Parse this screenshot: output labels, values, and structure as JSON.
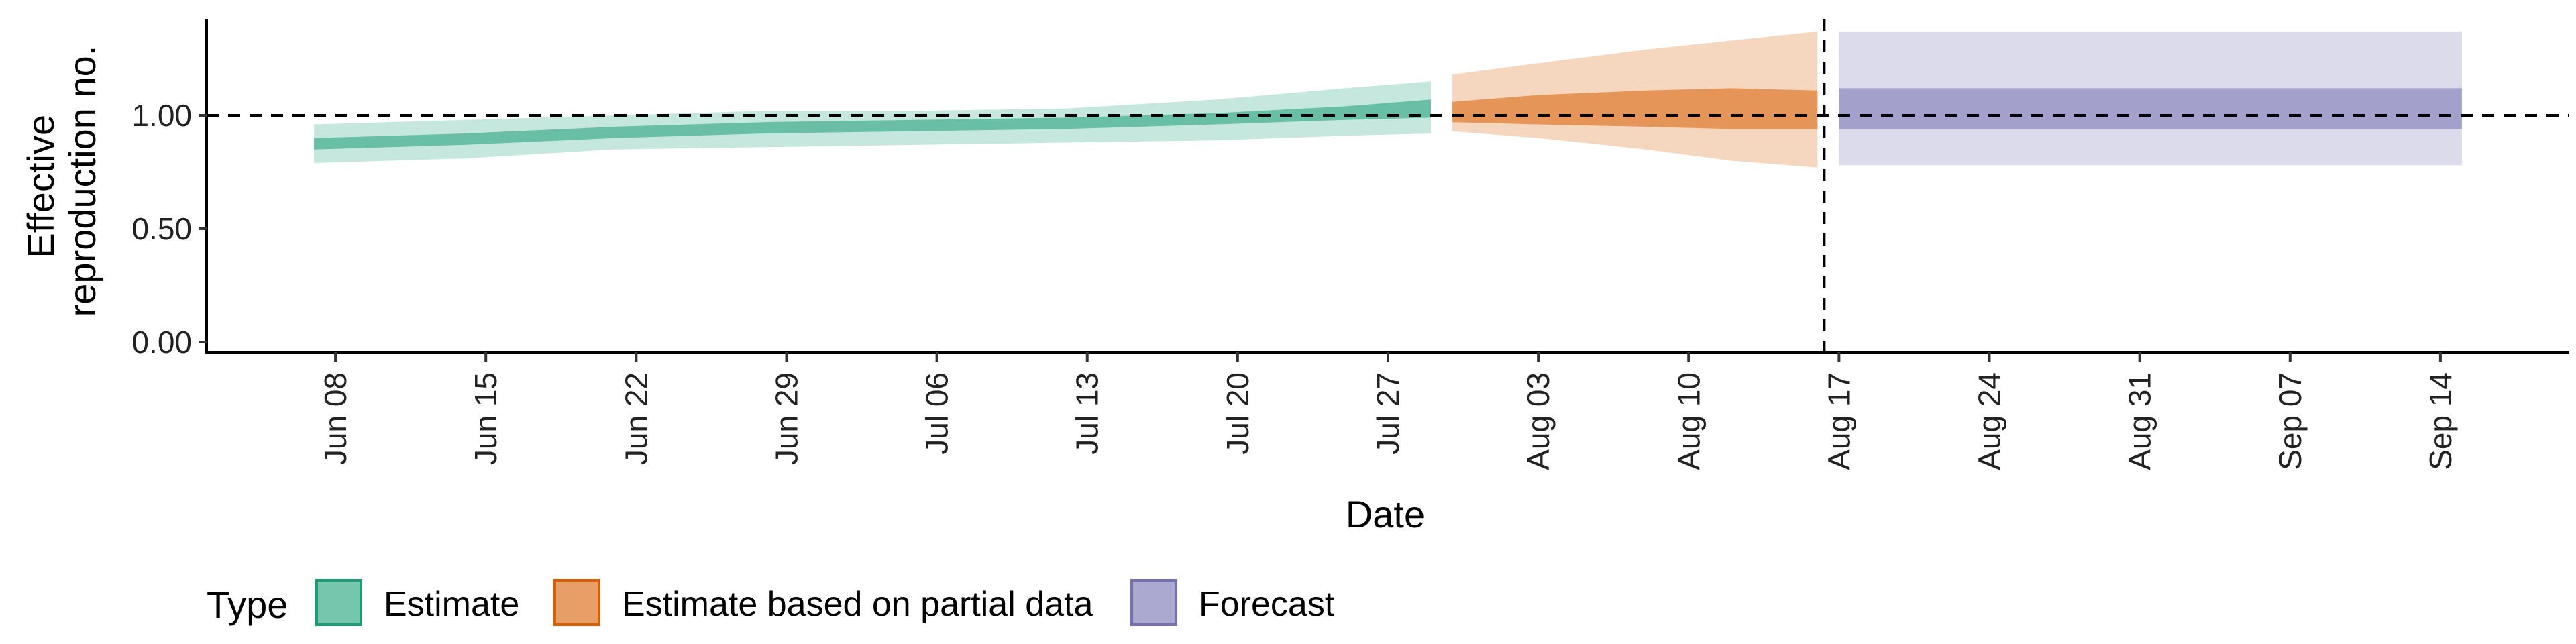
{
  "chart_data": {
    "type": "area",
    "xlabel": "Date",
    "ylabel": [
      "Effective",
      "reproduction no."
    ],
    "x_ticks": [
      "Jun 08",
      "Jun 15",
      "Jun 22",
      "Jun 29",
      "Jul 06",
      "Jul 13",
      "Jul 20",
      "Jul 27",
      "Aug 03",
      "Aug 10",
      "Aug 17",
      "Aug 24",
      "Aug 31",
      "Sep 07",
      "Sep 14"
    ],
    "y_ticks": [
      "0.00",
      "0.50",
      "1.00"
    ],
    "xlim": [
      "2020-06-02",
      "2020-09-20"
    ],
    "ylim": [
      0,
      1.42
    ],
    "reference_y": 1.0,
    "forecast_date": "2020-08-16",
    "grid": false,
    "legend_title": "Type",
    "legend_position": "bottom",
    "series": [
      {
        "name": "Estimate",
        "color": "#1b9e77",
        "points": [
          {
            "date": "2020-06-07",
            "median": 0.87,
            "lower50": 0.85,
            "upper50": 0.9,
            "lower90": 0.79,
            "upper90": 0.96
          },
          {
            "date": "2020-06-14",
            "median": 0.89,
            "lower50": 0.87,
            "upper50": 0.92,
            "lower90": 0.81,
            "upper90": 0.98
          },
          {
            "date": "2020-06-21",
            "median": 0.92,
            "lower50": 0.9,
            "upper50": 0.95,
            "lower90": 0.85,
            "upper90": 1.0
          },
          {
            "date": "2020-06-28",
            "median": 0.94,
            "lower50": 0.92,
            "upper50": 0.97,
            "lower90": 0.86,
            "upper90": 1.02
          },
          {
            "date": "2020-07-05",
            "median": 0.95,
            "lower50": 0.93,
            "upper50": 0.98,
            "lower90": 0.87,
            "upper90": 1.02
          },
          {
            "date": "2020-07-12",
            "median": 0.96,
            "lower50": 0.94,
            "upper50": 0.99,
            "lower90": 0.88,
            "upper90": 1.03
          },
          {
            "date": "2020-07-19",
            "median": 0.99,
            "lower50": 0.96,
            "upper50": 1.01,
            "lower90": 0.89,
            "upper90": 1.07
          },
          {
            "date": "2020-07-25",
            "median": 1.01,
            "lower50": 0.98,
            "upper50": 1.04,
            "lower90": 0.91,
            "upper90": 1.12
          },
          {
            "date": "2020-07-29",
            "median": 1.03,
            "lower50": 0.99,
            "upper50": 1.07,
            "lower90": 0.92,
            "upper90": 1.15
          }
        ]
      },
      {
        "name": "Estimate based on partial data",
        "color": "#d95f02",
        "points": [
          {
            "date": "2020-07-30",
            "median": 1.01,
            "lower50": 0.97,
            "upper50": 1.06,
            "lower90": 0.93,
            "upper90": 1.18
          },
          {
            "date": "2020-08-03",
            "median": 1.02,
            "lower50": 0.96,
            "upper50": 1.09,
            "lower90": 0.9,
            "upper90": 1.23
          },
          {
            "date": "2020-08-08",
            "median": 1.03,
            "lower50": 0.95,
            "upper50": 1.11,
            "lower90": 0.85,
            "upper90": 1.29
          },
          {
            "date": "2020-08-12",
            "median": 1.03,
            "lower50": 0.94,
            "upper50": 1.12,
            "lower90": 0.8,
            "upper90": 1.33
          },
          {
            "date": "2020-08-16",
            "median": 1.03,
            "lower50": 0.94,
            "upper50": 1.11,
            "lower90": 0.77,
            "upper90": 1.37
          }
        ]
      },
      {
        "name": "Forecast",
        "color": "#7570b3",
        "points": [
          {
            "date": "2020-08-17",
            "median": 1.03,
            "lower50": 0.94,
            "upper50": 1.12,
            "lower90": 0.78,
            "upper90": 1.37
          },
          {
            "date": "2020-09-15",
            "median": 1.03,
            "lower50": 0.94,
            "upper50": 1.12,
            "lower90": 0.78,
            "upper90": 1.37
          }
        ]
      }
    ]
  }
}
